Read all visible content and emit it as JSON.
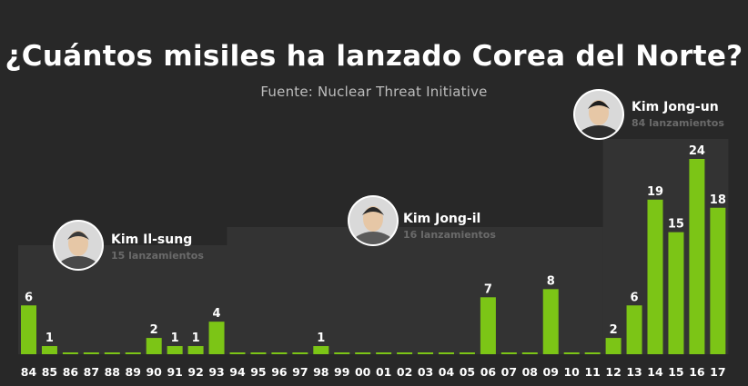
{
  "title": "¿Cuántos misiles ha lanzado Corea del Norte?",
  "subtitle": "Fuente: Nuclear Threat Initiative",
  "colors": {
    "background": "#282828",
    "bar": "#7cc516",
    "era_panel": "#333333"
  },
  "leaders": [
    {
      "name": "Kim Il-sung",
      "count_label": "15 lanzamientos",
      "from": "84",
      "to": "93",
      "portrait": "kim-il-sung-portrait"
    },
    {
      "name": "Kim Jong-il",
      "count_label": "16 lanzamientos",
      "from": "94",
      "to": "11",
      "portrait": "kim-jong-il-portrait"
    },
    {
      "name": "Kim Jong-un",
      "count_label": "84 lanzamientos",
      "from": "12",
      "to": "17",
      "portrait": "kim-jong-un-portrait"
    }
  ],
  "chart_data": {
    "type": "bar",
    "title": "¿Cuántos misiles ha lanzado Corea del Norte?",
    "subtitle": "Fuente: Nuclear Threat Initiative",
    "categories": [
      "84",
      "85",
      "86",
      "87",
      "88",
      "89",
      "90",
      "91",
      "92",
      "93",
      "94",
      "95",
      "96",
      "97",
      "98",
      "99",
      "00",
      "01",
      "02",
      "03",
      "04",
      "05",
      "06",
      "07",
      "08",
      "09",
      "10",
      "11",
      "12",
      "13",
      "14",
      "15",
      "16",
      "17"
    ],
    "values": [
      6,
      1,
      0,
      0,
      0,
      0,
      2,
      1,
      1,
      4,
      0,
      0,
      0,
      0,
      1,
      0,
      0,
      0,
      0,
      0,
      0,
      0,
      7,
      0,
      0,
      8,
      0,
      0,
      2,
      6,
      19,
      15,
      24,
      18
    ],
    "data_labels": [
      "6",
      "1",
      "",
      "",
      "",
      "",
      "2",
      "1",
      "1",
      "4",
      "",
      "",
      "",
      "",
      "1",
      "",
      "",
      "",
      "",
      "",
      "",
      "",
      "7",
      "",
      "",
      "8",
      "",
      "",
      "2",
      "6",
      "19",
      "15",
      "24",
      "18"
    ],
    "ylim": [
      0,
      24
    ],
    "grid": false,
    "legend": "none"
  }
}
